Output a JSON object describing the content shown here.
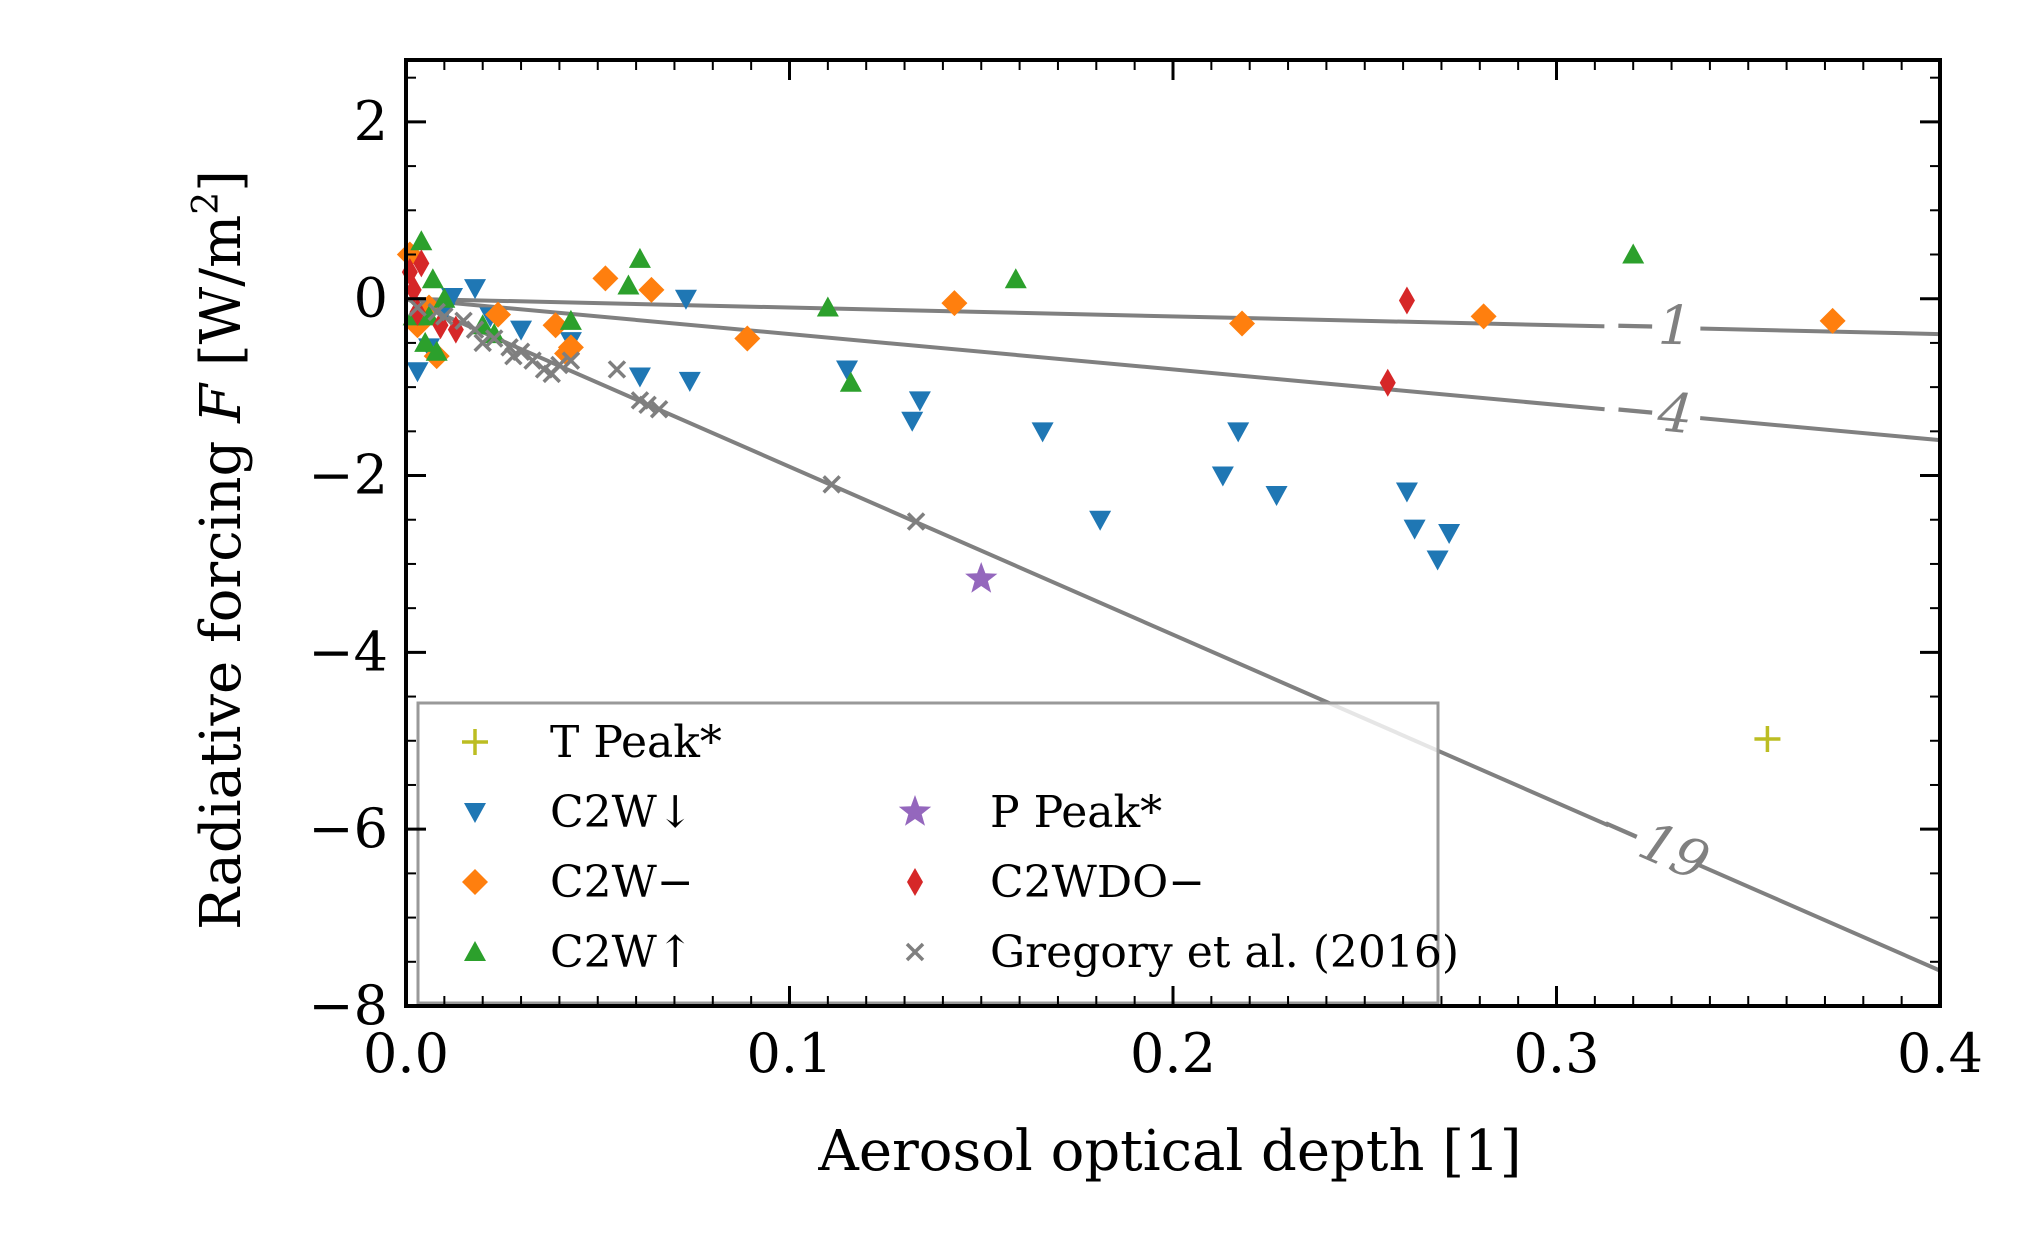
{
  "chart_data": {
    "type": "scatter",
    "xlabel": "Aerosol optical depth [1]",
    "ylabel_prefix": "Radiative forcing ",
    "ylabel_var": "F",
    "ylabel_unit_open": " [W/m",
    "ylabel_unit_sup": "2",
    "ylabel_unit_close": "]",
    "xlim": [
      0.0,
      0.4
    ],
    "ylim": [
      -8.0,
      2.7
    ],
    "x_ticks": [
      {
        "value": 0.0,
        "label": "0.0"
      },
      {
        "value": 0.1,
        "label": "0.1"
      },
      {
        "value": 0.2,
        "label": "0.2"
      },
      {
        "value": 0.3,
        "label": "0.3"
      },
      {
        "value": 0.4,
        "label": "0.4"
      }
    ],
    "y_ticks": [
      {
        "value": 2,
        "label": "2"
      },
      {
        "value": 0,
        "label": "0"
      },
      {
        "value": -2,
        "label": "−2"
      },
      {
        "value": -4,
        "label": "−4"
      },
      {
        "value": -6,
        "label": "−6"
      },
      {
        "value": -8,
        "label": "−8"
      }
    ],
    "reference_lines": [
      {
        "slope": -1,
        "label": "−1",
        "label_x": 0.325
      },
      {
        "slope": -4,
        "label": "−4",
        "label_x": 0.325
      },
      {
        "slope": -19,
        "label": "−19",
        "label_x": 0.325
      }
    ],
    "legend_position": "bottom-left",
    "series": [
      {
        "name": "T Peak*",
        "marker": "plus",
        "color": "#bcbd22",
        "points": [
          [
            0.355,
            -4.98
          ]
        ]
      },
      {
        "name": "C2W↓",
        "marker": "triangle-down",
        "color": "#1f77b4",
        "points": [
          [
            0.003,
            -0.82
          ],
          [
            0.006,
            -0.55
          ],
          [
            0.01,
            -0.15
          ],
          [
            0.012,
            0.02
          ],
          [
            0.018,
            0.12
          ],
          [
            0.022,
            -0.2
          ],
          [
            0.03,
            -0.35
          ],
          [
            0.043,
            -0.48
          ],
          [
            0.061,
            -0.88
          ],
          [
            0.073,
            0.0
          ],
          [
            0.074,
            -0.93
          ],
          [
            0.115,
            -0.8
          ],
          [
            0.132,
            -1.38
          ],
          [
            0.134,
            -1.15
          ],
          [
            0.166,
            -1.5
          ],
          [
            0.181,
            -2.5
          ],
          [
            0.213,
            -2.0
          ],
          [
            0.217,
            -1.5
          ],
          [
            0.227,
            -2.22
          ],
          [
            0.261,
            -2.18
          ],
          [
            0.263,
            -2.6
          ],
          [
            0.269,
            -2.95
          ],
          [
            0.272,
            -2.65
          ]
        ]
      },
      {
        "name": "C2W−",
        "marker": "diamond",
        "color": "#ff7f0e",
        "points": [
          [
            0.001,
            0.5
          ],
          [
            0.003,
            -0.3
          ],
          [
            0.006,
            -0.1
          ],
          [
            0.008,
            -0.65
          ],
          [
            0.024,
            -0.18
          ],
          [
            0.039,
            -0.3
          ],
          [
            0.042,
            -0.62
          ],
          [
            0.043,
            -0.55
          ],
          [
            0.052,
            0.23
          ],
          [
            0.064,
            0.1
          ],
          [
            0.089,
            -0.45
          ],
          [
            0.143,
            -0.05
          ],
          [
            0.218,
            -0.28
          ],
          [
            0.281,
            -0.2
          ],
          [
            0.372,
            -0.25
          ]
        ]
      },
      {
        "name": "C2W↑",
        "marker": "triangle-up",
        "color": "#2ca02c",
        "points": [
          [
            0.002,
            -0.2
          ],
          [
            0.004,
            0.65
          ],
          [
            0.005,
            -0.5
          ],
          [
            0.006,
            -0.2
          ],
          [
            0.007,
            0.22
          ],
          [
            0.008,
            -0.6
          ],
          [
            0.01,
            0.0
          ],
          [
            0.02,
            -0.3
          ],
          [
            0.023,
            -0.4
          ],
          [
            0.043,
            -0.25
          ],
          [
            0.058,
            0.15
          ],
          [
            0.061,
            0.45
          ],
          [
            0.11,
            -0.1
          ],
          [
            0.116,
            -0.95
          ],
          [
            0.159,
            0.22
          ],
          [
            0.32,
            0.5
          ]
        ]
      },
      {
        "name": "P Peak*",
        "marker": "star",
        "color": "#9467bd",
        "points": [
          [
            0.15,
            -3.17
          ]
        ]
      },
      {
        "name": "C2WDO−",
        "marker": "thin-diamond",
        "color": "#d62728",
        "points": [
          [
            0.001,
            0.3
          ],
          [
            0.002,
            0.1
          ],
          [
            0.003,
            -0.15
          ],
          [
            0.004,
            0.4
          ],
          [
            0.009,
            -0.3
          ],
          [
            0.013,
            -0.35
          ],
          [
            0.256,
            -0.95
          ],
          [
            0.261,
            -0.02
          ]
        ]
      },
      {
        "name": "Gregory et al. (2016)",
        "marker": "x",
        "color": "#7f7f7f",
        "points": [
          [
            0.003,
            -0.1
          ],
          [
            0.008,
            -0.15
          ],
          [
            0.01,
            -0.2
          ],
          [
            0.015,
            -0.25
          ],
          [
            0.018,
            -0.35
          ],
          [
            0.02,
            -0.5
          ],
          [
            0.023,
            -0.45
          ],
          [
            0.027,
            -0.55
          ],
          [
            0.028,
            -0.65
          ],
          [
            0.03,
            -0.6
          ],
          [
            0.033,
            -0.7
          ],
          [
            0.036,
            -0.8
          ],
          [
            0.038,
            -0.85
          ],
          [
            0.04,
            -0.75
          ],
          [
            0.043,
            -0.7
          ],
          [
            0.055,
            -0.8
          ],
          [
            0.061,
            -1.15
          ],
          [
            0.063,
            -1.2
          ],
          [
            0.066,
            -1.25
          ],
          [
            0.111,
            -2.1
          ],
          [
            0.133,
            -2.52
          ]
        ]
      }
    ]
  }
}
